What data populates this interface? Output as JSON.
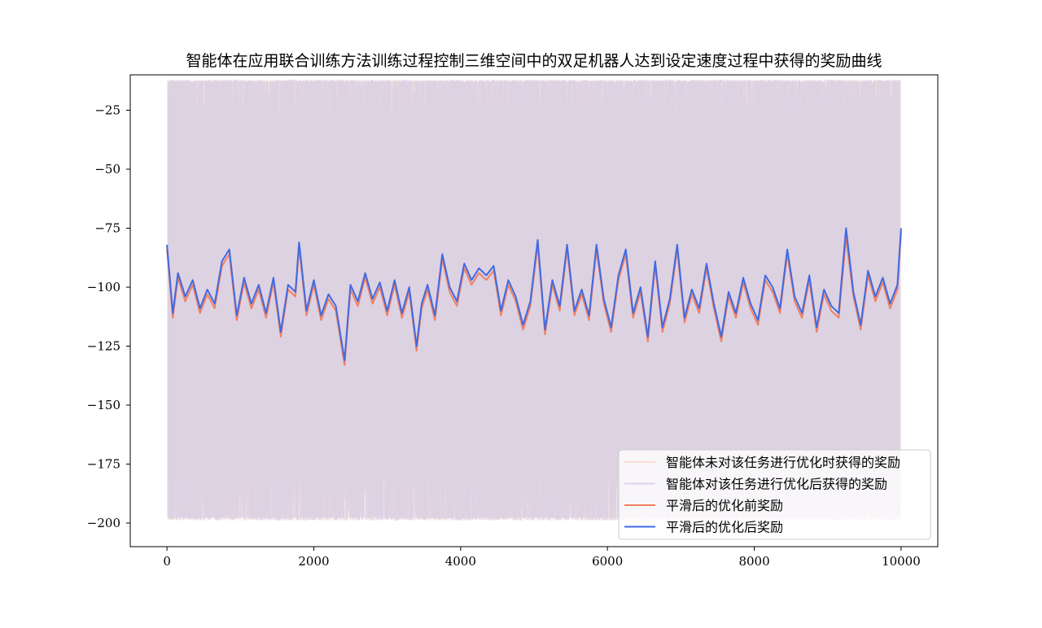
{
  "chart_data": {
    "type": "line",
    "title": "智能体在应用联合训练方法训练过程控制三维空间中的双足机器人达到设定速度过程中获得的奖励曲线",
    "xlabel": "",
    "ylabel": "",
    "xlim": [
      -500,
      10500
    ],
    "ylim": [
      -210,
      -10
    ],
    "x_ticks": [
      0,
      2000,
      4000,
      6000,
      8000,
      10000
    ],
    "y_ticks": [
      -25,
      -50,
      -75,
      -100,
      -125,
      -150,
      -175,
      -200
    ],
    "grid": false,
    "legend_position": "lower-right",
    "raw_band": {
      "x_range": [
        0,
        10000
      ],
      "upper": -12,
      "lower": -199
    },
    "series": [
      {
        "name": "智能体未对该任务进行优化时获得的奖励",
        "style": "raw",
        "color": "#f9d4c4",
        "x": [
          0,
          10000
        ],
        "values": [
          -12,
          -199
        ]
      },
      {
        "name": "智能体对该任务进行优化后获得的奖励",
        "style": "raw",
        "color": "#d3cbe3",
        "x": [
          0,
          10000
        ],
        "values": [
          -12,
          -199
        ]
      },
      {
        "name": "平滑后的优化前奖励",
        "style": "smooth",
        "color": "#f08060",
        "x": [
          0,
          80,
          150,
          250,
          350,
          450,
          550,
          650,
          750,
          850,
          950,
          1050,
          1150,
          1250,
          1350,
          1450,
          1550,
          1650,
          1750,
          1800,
          1900,
          2000,
          2100,
          2200,
          2300,
          2420,
          2500,
          2600,
          2700,
          2800,
          2900,
          3000,
          3100,
          3200,
          3300,
          3400,
          3470,
          3550,
          3650,
          3750,
          3850,
          3950,
          4050,
          4150,
          4250,
          4350,
          4450,
          4550,
          4650,
          4750,
          4850,
          4950,
          5050,
          5150,
          5250,
          5350,
          5450,
          5550,
          5650,
          5750,
          5850,
          5950,
          6050,
          6150,
          6250,
          6350,
          6450,
          6550,
          6650,
          6750,
          6850,
          6950,
          7050,
          7150,
          7250,
          7350,
          7450,
          7550,
          7650,
          7750,
          7850,
          7950,
          8050,
          8150,
          8250,
          8350,
          8450,
          8550,
          8650,
          8750,
          8850,
          8950,
          9050,
          9150,
          9250,
          9350,
          9450,
          9550,
          9650,
          9750,
          9850,
          9950,
          10000
        ],
        "values": [
          -84,
          -113,
          -96,
          -106,
          -99,
          -111,
          -103,
          -109,
          -91,
          -86,
          -114,
          -98,
          -109,
          -101,
          -113,
          -98,
          -121,
          -101,
          -104,
          -83,
          -112,
          -99,
          -114,
          -105,
          -110,
          -133,
          -101,
          -108,
          -96,
          -107,
          -100,
          -112,
          -99,
          -113,
          -102,
          -127,
          -109,
          -101,
          -114,
          -88,
          -102,
          -108,
          -92,
          -99,
          -94,
          -97,
          -93,
          -112,
          -99,
          -106,
          -118,
          -108,
          -82,
          -120,
          -99,
          -110,
          -84,
          -112,
          -103,
          -114,
          -84,
          -107,
          -119,
          -97,
          -86,
          -113,
          -102,
          -123,
          -91,
          -119,
          -107,
          -84,
          -115,
          -103,
          -111,
          -92,
          -109,
          -123,
          -104,
          -113,
          -98,
          -109,
          -116,
          -97,
          -102,
          -111,
          -86,
          -106,
          -113,
          -97,
          -119,
          -103,
          -110,
          -113,
          -79,
          -104,
          -118,
          -95,
          -106,
          -98,
          -109,
          -101,
          -77
        ]
      },
      {
        "name": "平滑后的优化后奖励",
        "style": "smooth",
        "color": "#4169e1",
        "x": [
          0,
          80,
          150,
          250,
          350,
          450,
          550,
          650,
          750,
          850,
          950,
          1050,
          1150,
          1250,
          1350,
          1450,
          1550,
          1650,
          1750,
          1800,
          1900,
          2000,
          2100,
          2200,
          2300,
          2420,
          2500,
          2600,
          2700,
          2800,
          2900,
          3000,
          3100,
          3200,
          3300,
          3400,
          3470,
          3550,
          3650,
          3750,
          3850,
          3950,
          4050,
          4150,
          4250,
          4350,
          4450,
          4550,
          4650,
          4750,
          4850,
          4950,
          5050,
          5150,
          5250,
          5350,
          5450,
          5550,
          5650,
          5750,
          5850,
          5950,
          6050,
          6150,
          6250,
          6350,
          6450,
          6550,
          6650,
          6750,
          6850,
          6950,
          7050,
          7150,
          7250,
          7350,
          7450,
          7550,
          7650,
          7750,
          7850,
          7950,
          8050,
          8150,
          8250,
          8350,
          8450,
          8550,
          8650,
          8750,
          8850,
          8950,
          9050,
          9150,
          9250,
          9350,
          9450,
          9550,
          9650,
          9750,
          9850,
          9950,
          10000
        ],
        "values": [
          -82,
          -111,
          -94,
          -104,
          -97,
          -109,
          -101,
          -107,
          -89,
          -84,
          -112,
          -96,
          -107,
          -99,
          -111,
          -96,
          -119,
          -99,
          -102,
          -81,
          -110,
          -97,
          -112,
          -103,
          -108,
          -131,
          -99,
          -106,
          -94,
          -105,
          -98,
          -110,
          -97,
          -111,
          -100,
          -125,
          -107,
          -99,
          -112,
          -86,
          -100,
          -106,
          -90,
          -97,
          -92,
          -95,
          -91,
          -110,
          -97,
          -104,
          -116,
          -106,
          -80,
          -118,
          -97,
          -108,
          -82,
          -110,
          -101,
          -112,
          -82,
          -105,
          -117,
          -95,
          -84,
          -111,
          -100,
          -121,
          -89,
          -117,
          -105,
          -82,
          -113,
          -101,
          -109,
          -90,
          -107,
          -121,
          -102,
          -111,
          -96,
          -107,
          -114,
          -95,
          -100,
          -109,
          -84,
          -104,
          -111,
          -95,
          -117,
          -101,
          -108,
          -111,
          -75,
          -102,
          -116,
          -93,
          -104,
          -96,
          -107,
          -99,
          -75
        ]
      }
    ]
  }
}
